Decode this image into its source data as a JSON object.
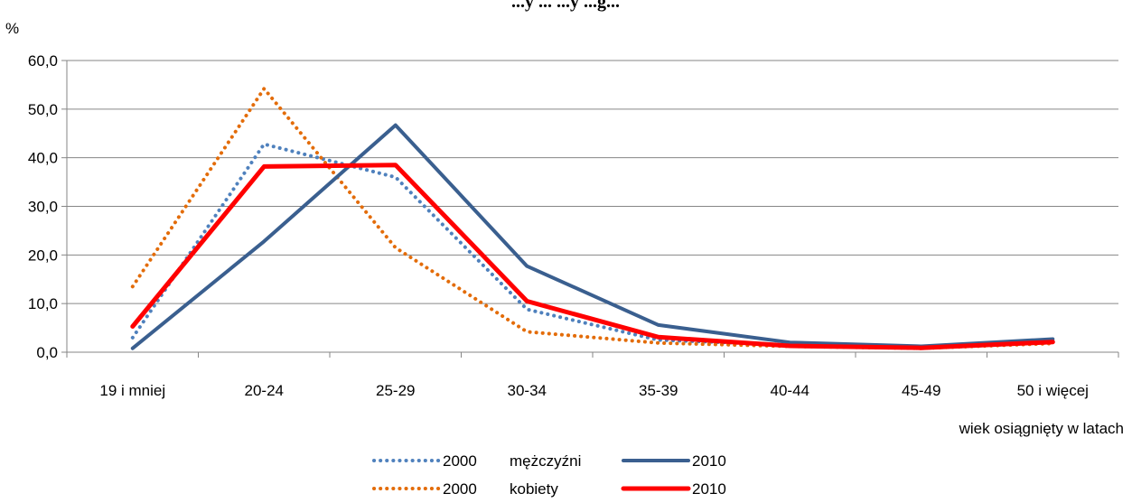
{
  "chart_data": {
    "type": "line",
    "title": "...y ... ...y ...g...",
    "ylabel": "%",
    "xlabel": "wiek osiągnięty w latach",
    "categories": [
      "19 i mniej",
      "20-24",
      "25-29",
      "30-34",
      "35-39",
      "40-44",
      "45-49",
      "50 i więcej"
    ],
    "ylim": [
      0,
      60
    ],
    "yticks": [
      "0,0",
      "10,0",
      "20,0",
      "30,0",
      "40,0",
      "50,0",
      "60,0"
    ],
    "grid": true,
    "legend_position": "bottom",
    "series": [
      {
        "group": "2000",
        "name": "mężczyźni",
        "color": "#4F81BD",
        "dash": "dotted",
        "values": [
          3.0,
          42.8,
          36.0,
          8.8,
          2.5,
          1.5,
          0.8,
          2.0
        ]
      },
      {
        "group": "2000",
        "name": "kobiety",
        "color": "#E36C09",
        "dash": "dotted",
        "values": [
          13.5,
          54.2,
          21.5,
          4.2,
          1.9,
          1.2,
          0.8,
          1.8
        ]
      },
      {
        "group": "2010",
        "name": "",
        "color": "#3A5F8F",
        "dash": "solid",
        "values": [
          0.8,
          22.8,
          46.7,
          17.7,
          5.6,
          2.0,
          1.2,
          2.7
        ]
      },
      {
        "group": "2010",
        "name": "",
        "color": "#FF0000",
        "dash": "solid",
        "values": [
          5.3,
          38.2,
          38.5,
          10.5,
          3.1,
          1.3,
          0.9,
          2.1
        ]
      }
    ]
  }
}
